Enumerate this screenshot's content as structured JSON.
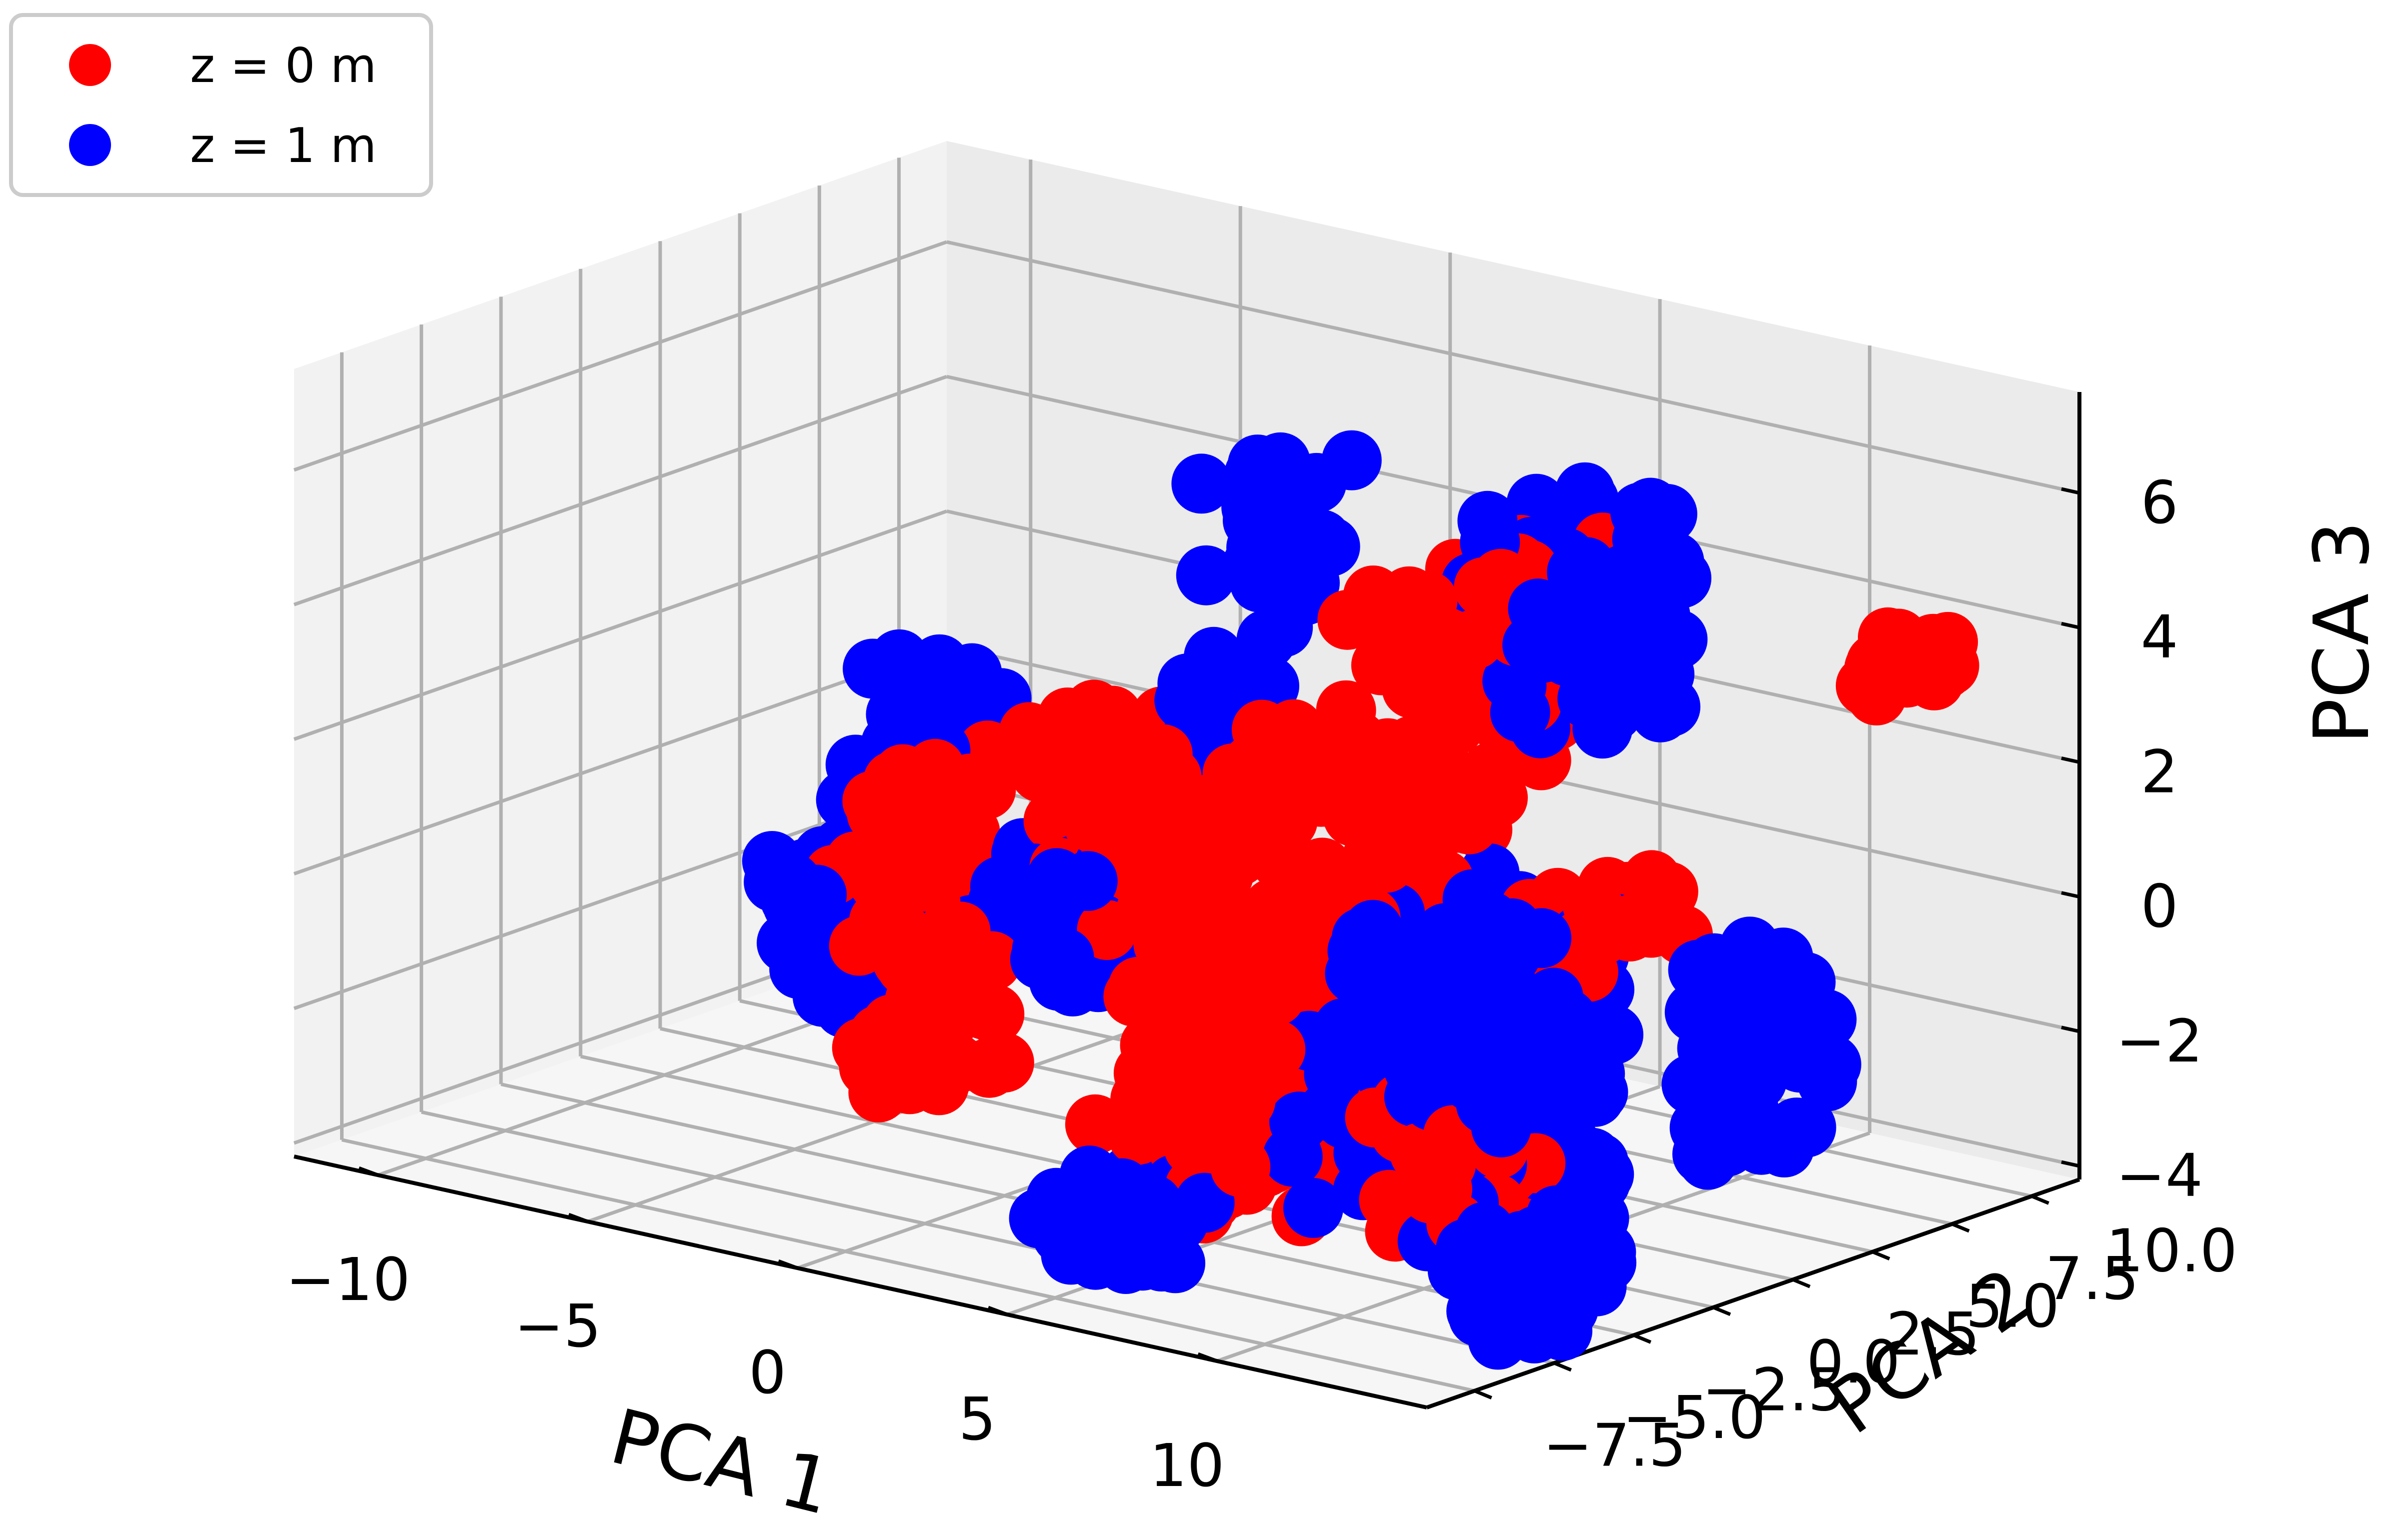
{
  "chart_data": {
    "type": "scatter",
    "subtype": "3d",
    "xlabel": "PCA 1",
    "ylabel": "PCA 2",
    "zlabel": "PCA 3",
    "xlim": [
      -12,
      15
    ],
    "ylim": [
      -9,
      11.5
    ],
    "zlim": [
      -4.2,
      7.5
    ],
    "x_ticks": [
      "−10",
      "−5",
      "0",
      "5",
      "10"
    ],
    "y_ticks": [
      "−7.5",
      "−5.0",
      "−2.5",
      "0.0",
      "2.5",
      "5.0",
      "7.5",
      "10.0"
    ],
    "z_ticks": [
      "−4",
      "−2",
      "0",
      "2",
      "4",
      "6"
    ],
    "grid": true,
    "legend_position": "top-left",
    "series": [
      {
        "name": "z = 0 m",
        "color": "#ff0000",
        "clusters": [
          {
            "x": [
              3.5,
              7.5
            ],
            "y": [
              -4,
              4
            ],
            "z": [
              -3.5,
              3.0
            ],
            "n": 230
          },
          {
            "x": [
              2.5,
              5.5
            ],
            "y": [
              -3,
              3
            ],
            "z": [
              -3.8,
              -1.5
            ],
            "n": 80
          },
          {
            "x": [
              5.0,
              7.0
            ],
            "y": [
              0,
              6
            ],
            "z": [
              1.5,
              5.0
            ],
            "n": 60
          },
          {
            "x": [
              7.0,
              9.0
            ],
            "y": [
              2,
              6
            ],
            "z": [
              3.0,
              5.5
            ],
            "n": 45
          },
          {
            "x": [
              -1.0,
              1.0
            ],
            "y": [
              -1,
              2
            ],
            "z": [
              0.0,
              2.5
            ],
            "n": 45
          },
          {
            "x": [
              -4.5,
              -2.5
            ],
            "y": [
              -2,
              1
            ],
            "z": [
              -0.5,
              1.5
            ],
            "n": 45
          },
          {
            "x": [
              -2.0,
              0.0
            ],
            "y": [
              -5,
              -2
            ],
            "z": [
              -2.5,
              0.0
            ],
            "n": 35
          },
          {
            "x": [
              9.0,
              11.0
            ],
            "y": [
              -3,
              0
            ],
            "z": [
              -3.6,
              -1.5
            ],
            "n": 45
          },
          {
            "x": [
              9.5,
              11.5
            ],
            "y": [
              1,
              4
            ],
            "z": [
              0.0,
              1.0
            ],
            "n": 30
          },
          {
            "x": [
              13.0,
              14.0
            ],
            "y": [
              7,
              9
            ],
            "z": [
              3.5,
              4.2
            ],
            "n": 28
          },
          {
            "x": [
              1.0,
              3.0
            ],
            "y": [
              -1,
              2
            ],
            "z": [
              -1.5,
              1.0
            ],
            "n": 40
          }
        ]
      },
      {
        "name": "z = 1 m",
        "color": "#0000ff",
        "clusters": [
          {
            "x": [
              7.0,
              11.0
            ],
            "y": [
              -3,
              3
            ],
            "z": [
              -3.5,
              0.8
            ],
            "n": 170
          },
          {
            "x": [
              7.0,
              10.0
            ],
            "y": [
              2,
              6
            ],
            "z": [
              3.0,
              6.0
            ],
            "n": 75
          },
          {
            "x": [
              14.5,
              16.0
            ],
            "y": [
              -1,
              3
            ],
            "z": [
              -2.0,
              1.0
            ],
            "n": 60
          },
          {
            "x": [
              13.0,
              14.5
            ],
            "y": [
              -6,
              -2
            ],
            "z": [
              -4.0,
              -2.5
            ],
            "n": 45
          },
          {
            "x": [
              3.0,
              6.0
            ],
            "y": [
              -6,
              -3
            ],
            "z": [
              -4.1,
              -3.2
            ],
            "n": 50
          },
          {
            "x": [
              -1.5,
              1.0
            ],
            "y": [
              -2,
              1
            ],
            "z": [
              -1.5,
              0.5
            ],
            "n": 45
          },
          {
            "x": [
              -5.5,
              -3.0
            ],
            "y": [
              -1,
              2
            ],
            "z": [
              0.5,
              2.5
            ],
            "n": 45
          },
          {
            "x": [
              -6.0,
              -4.0
            ],
            "y": [
              -3,
              0
            ],
            "z": [
              -1.5,
              0.0
            ],
            "n": 35
          },
          {
            "x": [
              -3.5,
              -1.5
            ],
            "y": [
              -4,
              -1
            ],
            "z": [
              -2.0,
              -0.5
            ],
            "n": 30
          },
          {
            "x": [
              -0.5,
              1.5
            ],
            "y": [
              4,
              7
            ],
            "z": [
              3.5,
              5.5
            ],
            "n": 30
          },
          {
            "x": [
              2.0,
              3.5
            ],
            "y": [
              0,
              3
            ],
            "z": [
              1.5,
              4.0
            ],
            "n": 25
          },
          {
            "x": [
              10.0,
              12.0
            ],
            "y": [
              -3,
              0
            ],
            "z": [
              -1.5,
              0.0
            ],
            "n": 30
          }
        ]
      }
    ]
  }
}
